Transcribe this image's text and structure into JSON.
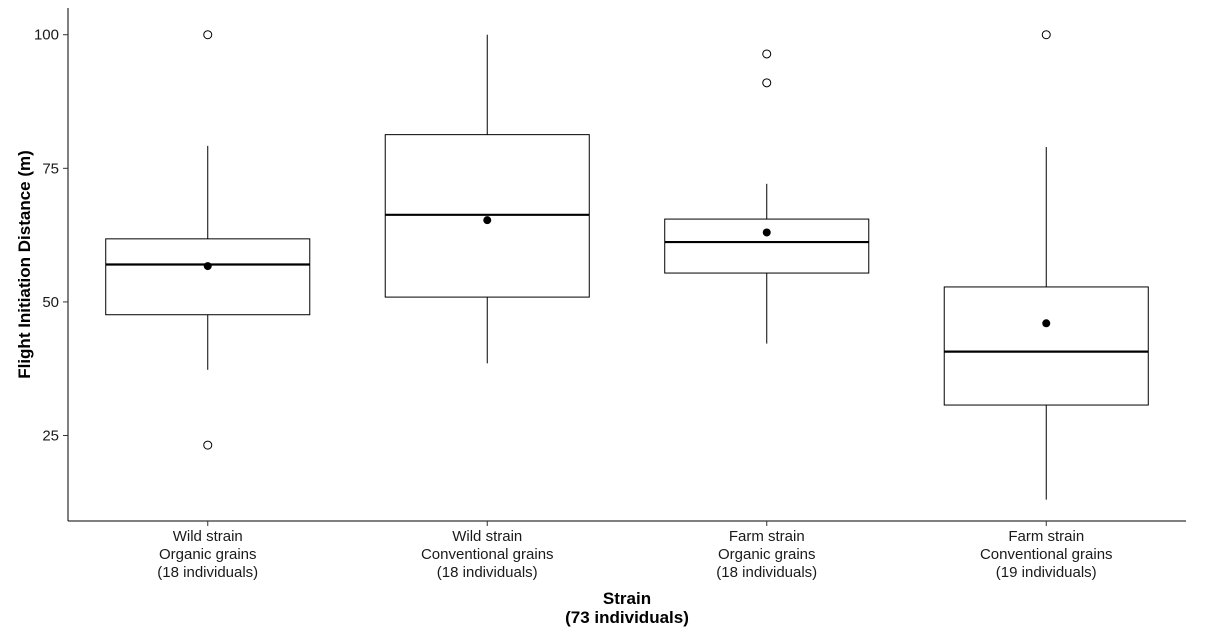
{
  "chart_data": {
    "type": "box",
    "title": "",
    "ylabel": "Flight Initiation Distance (m)",
    "xlabel_lines": [
      "Strain",
      "(73 individuals)"
    ],
    "ylim": [
      9,
      105
    ],
    "yticks": [
      25,
      50,
      75,
      100
    ],
    "grid": false,
    "legend": "none",
    "categories": [
      {
        "label_lines": [
          "Wild strain",
          "Organic grains",
          "(18 individuals)"
        ],
        "whisker_low": 37.3,
        "q1": 47.6,
        "median": 57.0,
        "q3": 61.8,
        "whisker_high": 79.2,
        "mean": 56.7,
        "outliers": [
          100,
          23.2
        ]
      },
      {
        "label_lines": [
          "Wild strain",
          "Conventional grains",
          "(18 individuals)"
        ],
        "whisker_low": 38.5,
        "q1": 50.9,
        "median": 66.3,
        "q3": 81.3,
        "whisker_high": 100,
        "mean": 65.3,
        "outliers": []
      },
      {
        "label_lines": [
          "Farm strain",
          "Organic grains",
          "(18 individuals)"
        ],
        "whisker_low": 42.2,
        "q1": 55.4,
        "median": 61.2,
        "q3": 65.5,
        "whisker_high": 72.1,
        "mean": 63.0,
        "outliers": [
          96.4,
          91.0
        ]
      },
      {
        "label_lines": [
          "Farm strain",
          "Conventional grains",
          "(19 individuals)"
        ],
        "whisker_low": 13.0,
        "q1": 30.7,
        "median": 40.7,
        "q3": 52.8,
        "whisker_high": 79.0,
        "mean": 46.0,
        "outliers": [
          100
        ]
      }
    ]
  }
}
